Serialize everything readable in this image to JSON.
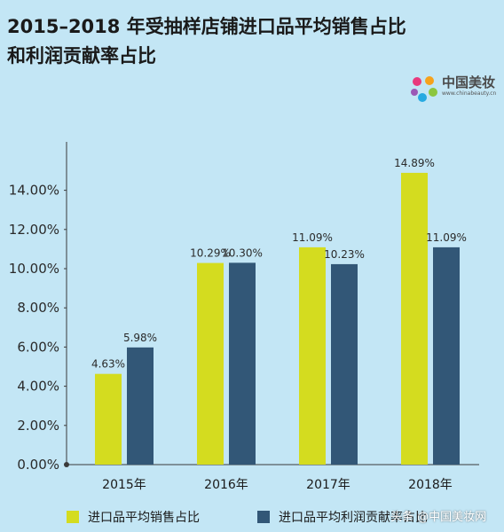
{
  "title_line1": "2015–2018 年受抽样店铺进口品平均销售占比",
  "title_line2": "和利润贡献率占比",
  "logo_text": "中国美妆",
  "logo_sub": "www.chinabeauty.cn",
  "credit": "头条 @中国美妆网",
  "colors": {
    "background": "#c3e6f5",
    "series1": "#d4dc1f",
    "series2": "#325777"
  },
  "chart_data": {
    "type": "bar",
    "title": "2015–2018 年受抽样店铺进口品平均销售占比和利润贡献率占比",
    "categories": [
      "2015年",
      "2016年",
      "2017年",
      "2018年"
    ],
    "ylim": [
      0,
      14
    ],
    "yticks": [
      "0.00%",
      "2.00%",
      "4.00%",
      "6.00%",
      "8.00%",
      "10.00%",
      "12.00%",
      "14.00%"
    ],
    "series": [
      {
        "name": "进口品平均销售占比",
        "values": [
          4.63,
          10.29,
          11.09,
          14.89
        ],
        "labels": [
          "4.63%",
          "10.29%",
          "11.09%",
          "14.89%"
        ],
        "color": "#d4dc1f"
      },
      {
        "name": "进口品平均利润贡献率占比",
        "values": [
          5.98,
          10.3,
          10.23,
          11.09
        ],
        "labels": [
          "5.98%",
          "10.30%",
          "10.23%",
          "11.09%"
        ],
        "color": "#325777"
      }
    ],
    "legend_position": "bottom"
  }
}
